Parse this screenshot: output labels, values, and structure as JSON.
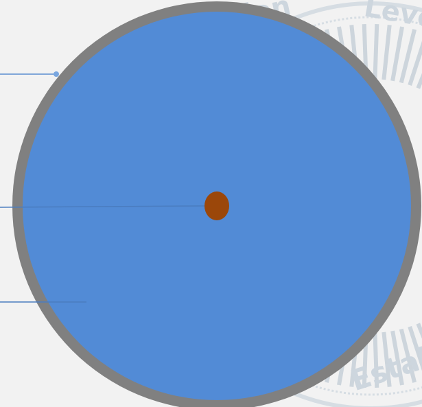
{
  "colors": {
    "background": "#f2f2f2",
    "outer_ring": "#808080",
    "main_disc": "#528bd6",
    "center_dot": "#9b470a",
    "callout_line": "#5b8dd0",
    "watermark": "#c5cfd8"
  },
  "watermark": {
    "icon": "seal-watermark",
    "fragments": [
      "ation",
      "Leve",
      "Estab"
    ]
  },
  "diagram": {
    "parts": [
      "outer-ring",
      "main-disc",
      "center-dot"
    ],
    "callouts": [
      "top",
      "middle",
      "bottom"
    ]
  }
}
